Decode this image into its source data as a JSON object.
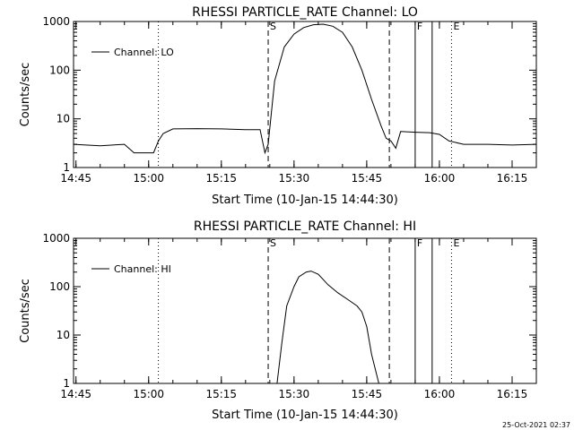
{
  "chart_data": [
    {
      "type": "line",
      "title": "RHESSI PARTICLE_RATE Channel: LO",
      "xlabel": "Start Time (10-Jan-15 14:44:30)",
      "ylabel": "Counts/sec",
      "yscale": "log",
      "xlim": [
        "14:44:30",
        "16:20:00"
      ],
      "ylim": [
        1,
        1000
      ],
      "x_ticks": [
        "14:45",
        "15:00",
        "15:15",
        "15:30",
        "15:45",
        "16:00",
        "16:15"
      ],
      "y_ticks": [
        "1",
        "10",
        "100",
        "1000"
      ],
      "legend": {
        "position": "top-left",
        "entries": [
          "Channel: LO"
        ]
      },
      "markers": [
        {
          "label": "",
          "time": "15:02:00",
          "style": "dotted"
        },
        {
          "label": "S",
          "time": "15:24:40",
          "style": "dashed"
        },
        {
          "label": "",
          "time": "15:49:40",
          "style": "dashed"
        },
        {
          "label": "F",
          "time": "15:55:00",
          "style": "solid"
        },
        {
          "label": "",
          "time": "15:58:30",
          "style": "solid"
        },
        {
          "label": "E",
          "time": "16:02:30",
          "style": "dotted"
        },
        {
          "label": "",
          "time": "16:20:00",
          "style": "dotted"
        }
      ],
      "series": [
        {
          "name": "Channel: LO",
          "x": [
            "14:44:30",
            "14:50:00",
            "14:55:00",
            "14:57:00",
            "15:00:00",
            "15:01:00",
            "15:02:00",
            "15:03:00",
            "15:05:00",
            "15:10:00",
            "15:15:00",
            "15:20:00",
            "15:23:00",
            "15:24:00",
            "15:24:40",
            "15:26:00",
            "15:28:00",
            "15:30:00",
            "15:32:00",
            "15:34:00",
            "15:36:00",
            "15:38:00",
            "15:40:00",
            "15:42:00",
            "15:44:00",
            "15:46:00",
            "15:48:00",
            "15:49:00",
            "15:50:00",
            "15:51:00",
            "15:52:00",
            "15:55:00",
            "15:58:00",
            "16:00:00",
            "16:02:00",
            "16:05:00",
            "16:10:00",
            "16:15:00",
            "16:20:00"
          ],
          "y": [
            3.0,
            2.8,
            3.0,
            2.0,
            2.0,
            2.0,
            3.5,
            5.0,
            6.2,
            6.3,
            6.2,
            6.0,
            6.0,
            2.0,
            3.0,
            60,
            300,
            550,
            750,
            860,
            880,
            800,
            600,
            300,
            100,
            25,
            7,
            4,
            3.5,
            2.5,
            5.5,
            5.3,
            5.2,
            4.8,
            3.5,
            3.0,
            3.0,
            2.9,
            3.0
          ]
        }
      ]
    },
    {
      "type": "line",
      "title": "RHESSI PARTICLE_RATE Channel: HI",
      "xlabel": "Start Time (10-Jan-15 14:44:30)",
      "ylabel": "Counts/sec",
      "yscale": "log",
      "xlim": [
        "14:44:30",
        "16:20:00"
      ],
      "ylim": [
        1,
        1000
      ],
      "x_ticks": [
        "14:45",
        "15:00",
        "15:15",
        "15:30",
        "15:45",
        "16:00",
        "16:15"
      ],
      "y_ticks": [
        "1",
        "10",
        "100",
        "1000"
      ],
      "legend": {
        "position": "top-left",
        "entries": [
          "Channel: HI"
        ]
      },
      "markers": [
        {
          "label": "",
          "time": "15:02:00",
          "style": "dotted"
        },
        {
          "label": "S",
          "time": "15:24:40",
          "style": "dashed"
        },
        {
          "label": "",
          "time": "15:49:40",
          "style": "dashed"
        },
        {
          "label": "F",
          "time": "15:55:00",
          "style": "solid"
        },
        {
          "label": "",
          "time": "15:58:30",
          "style": "solid"
        },
        {
          "label": "E",
          "time": "16:02:30",
          "style": "dotted"
        },
        {
          "label": "",
          "time": "16:20:00",
          "style": "dotted"
        }
      ],
      "series": [
        {
          "name": "Channel: HI",
          "x": [
            "15:26:30",
            "15:27:30",
            "15:28:30",
            "15:30:00",
            "15:31:00",
            "15:32:30",
            "15:33:30",
            "15:35:00",
            "15:37:00",
            "15:39:00",
            "15:41:00",
            "15:43:00",
            "15:44:00",
            "15:45:00",
            "15:46:00",
            "15:47:30"
          ],
          "y": [
            1,
            7,
            40,
            100,
            160,
            200,
            210,
            180,
            110,
            75,
            55,
            40,
            30,
            15,
            4,
            1
          ]
        }
      ]
    }
  ],
  "timestamp": "25-Oct-2021 02:37"
}
